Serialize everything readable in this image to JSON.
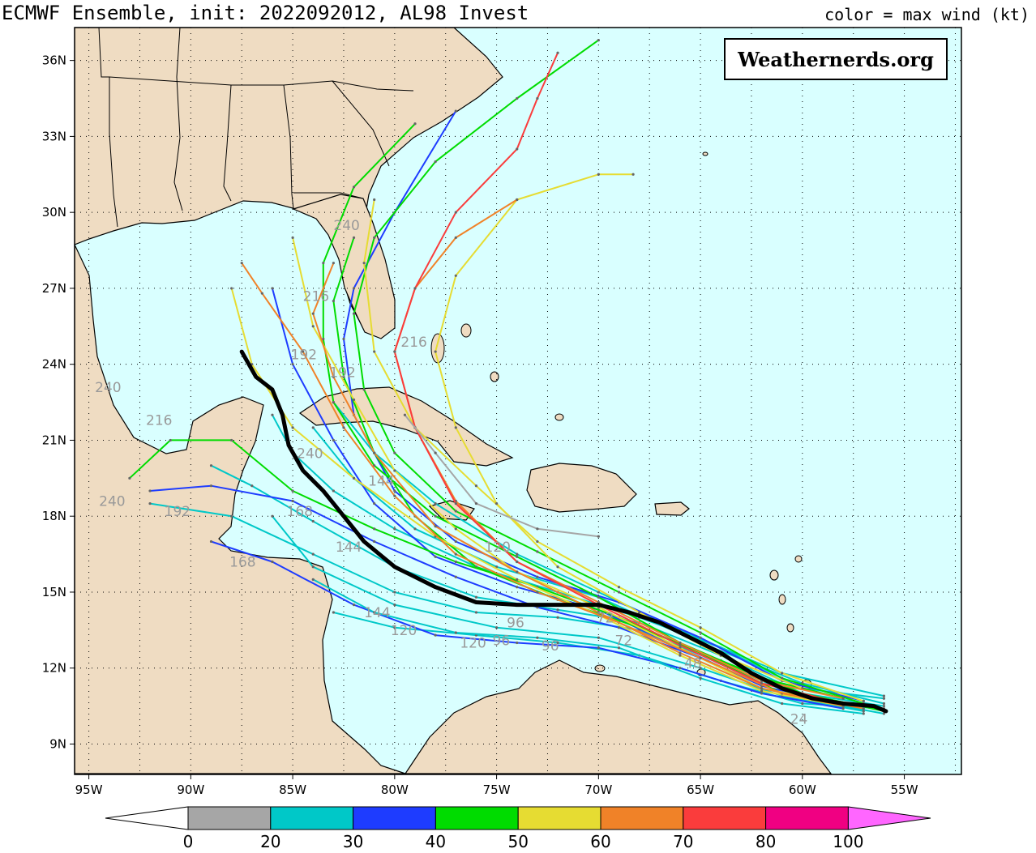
{
  "header": {
    "title": "ECMWF Ensemble, init: 2022092012, AL98 Invest",
    "legend_note": "color = max wind (kt)"
  },
  "badge": {
    "text": "Weathernerds.org"
  },
  "map": {
    "lon_range": [
      -95.7,
      -52.2
    ],
    "lat_range": [
      7.8,
      37.3
    ],
    "land_color": "#efdcc2",
    "ocean_color": "#d9ffff",
    "lon_ticks": [
      {
        "lon": -95,
        "label": "95W"
      },
      {
        "lon": -90,
        "label": "90W"
      },
      {
        "lon": -85,
        "label": "85W"
      },
      {
        "lon": -80,
        "label": "80W"
      },
      {
        "lon": -75,
        "label": "75W"
      },
      {
        "lon": -70,
        "label": "70W"
      },
      {
        "lon": -65,
        "label": "65W"
      },
      {
        "lon": -60,
        "label": "60W"
      },
      {
        "lon": -55,
        "label": "55W"
      }
    ],
    "lat_ticks": [
      {
        "lat": 36,
        "label": "36N"
      },
      {
        "lat": 33,
        "label": "33N"
      },
      {
        "lat": 30,
        "label": "30N"
      },
      {
        "lat": 27,
        "label": "27N"
      },
      {
        "lat": 24,
        "label": "24N"
      },
      {
        "lat": 21,
        "label": "21N"
      },
      {
        "lat": 18,
        "label": "18N"
      },
      {
        "lat": 15,
        "label": "15N"
      },
      {
        "lat": 12,
        "label": "12N"
      },
      {
        "lat": 9,
        "label": "9N"
      }
    ]
  },
  "colorbar": {
    "labels": [
      "0",
      "20",
      "30",
      "40",
      "50",
      "60",
      "70",
      "80",
      "100"
    ],
    "colors": [
      "#a6a6a6",
      "#00c8c8",
      "#1e3cff",
      "#00dc00",
      "#e6dc32",
      "#f08228",
      "#fa3c3c",
      "#f00082",
      "#ff66ff"
    ]
  },
  "mean_track": [
    [
      -55.9,
      10.3
    ],
    [
      -56.5,
      10.5
    ],
    [
      -58,
      10.6
    ],
    [
      -59.5,
      10.8
    ],
    [
      -61,
      11.2
    ],
    [
      -62.5,
      11.8
    ],
    [
      -64,
      12.6
    ],
    [
      -65.5,
      13.2
    ],
    [
      -67,
      13.8
    ],
    [
      -68.5,
      14.2
    ],
    [
      -70,
      14.5
    ],
    [
      -72,
      14.5
    ],
    [
      -74,
      14.5
    ],
    [
      -76,
      14.6
    ],
    [
      -78,
      15.2
    ],
    [
      -80,
      16.0
    ],
    [
      -81.5,
      17.0
    ],
    [
      -82.5,
      18.0
    ],
    [
      -83.5,
      19.0
    ],
    [
      -84.5,
      19.8
    ],
    [
      -85.2,
      20.8
    ],
    [
      -85.5,
      22.0
    ],
    [
      -86,
      23.0
    ],
    [
      -86.8,
      23.5
    ],
    [
      -87.5,
      24.5
    ]
  ],
  "member_tracks": [
    {
      "max_wind_kt": 25,
      "points": [
        [
          -56,
          10.5
        ],
        [
          -60,
          11
        ],
        [
          -64,
          12.5
        ],
        [
          -68,
          13.8
        ],
        [
          -72,
          14.3
        ],
        [
          -76,
          14.8
        ],
        [
          -80,
          16
        ],
        [
          -84,
          17.8
        ],
        [
          -87,
          19.2
        ],
        [
          -89,
          20
        ]
      ]
    },
    {
      "max_wind_kt": 25,
      "points": [
        [
          -56,
          10.8
        ],
        [
          -60,
          11.2
        ],
        [
          -64,
          12.8
        ],
        [
          -68,
          14
        ],
        [
          -72,
          15
        ],
        [
          -76,
          16
        ],
        [
          -80,
          17.5
        ],
        [
          -83,
          19
        ],
        [
          -85,
          20.5
        ],
        [
          -86,
          22
        ]
      ]
    },
    {
      "max_wind_kt": 25,
      "points": [
        [
          -56,
          10.2
        ],
        [
          -60,
          10.8
        ],
        [
          -64,
          12.2
        ],
        [
          -68,
          13.5
        ],
        [
          -72,
          14
        ],
        [
          -76,
          14.2
        ],
        [
          -80,
          15
        ],
        [
          -84,
          16.5
        ],
        [
          -88,
          18
        ],
        [
          -92,
          18.5
        ]
      ]
    },
    {
      "max_wind_kt": 25,
      "points": [
        [
          -56,
          10.6
        ],
        [
          -60,
          11.4
        ],
        [
          -65,
          13
        ],
        [
          -70,
          14.8
        ],
        [
          -75,
          16
        ],
        [
          -79,
          17.5
        ],
        [
          -82,
          19.5
        ],
        [
          -84,
          21.5
        ]
      ]
    },
    {
      "max_wind_kt": 25,
      "points": [
        [
          -56,
          10.4
        ],
        [
          -60,
          10.6
        ],
        [
          -64,
          11.5
        ],
        [
          -68,
          12.5
        ],
        [
          -72,
          13
        ],
        [
          -76,
          13.3
        ],
        [
          -80,
          13.6
        ],
        [
          -83,
          14.2
        ]
      ]
    },
    {
      "max_wind_kt": 25,
      "points": [
        [
          -56,
          10.9
        ],
        [
          -61,
          11.8
        ],
        [
          -66,
          13.5
        ],
        [
          -70,
          15
        ],
        [
          -74,
          16.5
        ],
        [
          -78,
          18.5
        ],
        [
          -81,
          20.5
        ],
        [
          -83,
          22.5
        ]
      ]
    },
    {
      "max_wind_kt": 25,
      "points": [
        [
          -57,
          10.3
        ],
        [
          -61,
          10.9
        ],
        [
          -65,
          12
        ],
        [
          -70,
          13.2
        ],
        [
          -75,
          13.6
        ],
        [
          -80,
          14.5
        ],
        [
          -84,
          16
        ],
        [
          -86,
          18
        ]
      ]
    },
    {
      "max_wind_kt": 35,
      "points": [
        [
          -57,
          10.5
        ],
        [
          -61,
          11
        ],
        [
          -65,
          12.4
        ],
        [
          -69,
          13.6
        ],
        [
          -73,
          14.4
        ],
        [
          -77,
          15.6
        ],
        [
          -81,
          17
        ],
        [
          -85,
          18.6
        ],
        [
          -89,
          19.2
        ],
        [
          -92,
          19
        ]
      ]
    },
    {
      "max_wind_kt": 35,
      "points": [
        [
          -58,
          10.5
        ],
        [
          -62,
          11.3
        ],
        [
          -66,
          12.8
        ],
        [
          -70,
          14.3
        ],
        [
          -74,
          15.2
        ],
        [
          -78,
          16.4
        ],
        [
          -81,
          18.5
        ],
        [
          -83,
          21
        ],
        [
          -85,
          24
        ],
        [
          -86,
          27
        ]
      ]
    },
    {
      "max_wind_kt": 35,
      "points": [
        [
          -58,
          10.4
        ],
        [
          -62,
          11
        ],
        [
          -66,
          12
        ],
        [
          -70,
          12.8
        ],
        [
          -74,
          13
        ],
        [
          -78,
          13.3
        ],
        [
          -82,
          14.5
        ],
        [
          -86,
          16.2
        ],
        [
          -89,
          17
        ]
      ]
    },
    {
      "max_wind_kt": 35,
      "points": [
        [
          -57,
          10.7
        ],
        [
          -61,
          11.5
        ],
        [
          -65,
          13.2
        ],
        [
          -69,
          14.6
        ],
        [
          -73,
          15.6
        ],
        [
          -77,
          17
        ],
        [
          -80,
          19
        ],
        [
          -82,
          22
        ],
        [
          -82.5,
          25
        ],
        [
          -82,
          27
        ],
        [
          -80,
          30
        ],
        [
          -77,
          34
        ]
      ]
    },
    {
      "max_wind_kt": 45,
      "points": [
        [
          -57,
          10.6
        ],
        [
          -61,
          11.6
        ],
        [
          -65,
          13.4
        ],
        [
          -69,
          15
        ],
        [
          -73,
          16.6
        ],
        [
          -77,
          18.2
        ],
        [
          -80,
          20.5
        ],
        [
          -81.5,
          23
        ],
        [
          -82,
          26
        ],
        [
          -81,
          29
        ],
        [
          -78,
          32
        ],
        [
          -74,
          34.5
        ],
        [
          -70,
          36.8
        ]
      ]
    },
    {
      "max_wind_kt": 45,
      "points": [
        [
          -56,
          10.3
        ],
        [
          -60,
          11
        ],
        [
          -64,
          12.3
        ],
        [
          -68,
          13.6
        ],
        [
          -72,
          14.7
        ],
        [
          -76,
          16
        ],
        [
          -79,
          18
        ],
        [
          -81,
          20.5
        ],
        [
          -82.5,
          23.5
        ],
        [
          -83,
          26.5
        ],
        [
          -82,
          29
        ]
      ]
    },
    {
      "max_wind_kt": 45,
      "points": [
        [
          -57,
          10.5
        ],
        [
          -61,
          11
        ],
        [
          -65,
          12.6
        ],
        [
          -69,
          14
        ],
        [
          -73,
          15.2
        ],
        [
          -77,
          16.2
        ],
        [
          -81,
          17.5
        ],
        [
          -85,
          19
        ],
        [
          -88,
          21
        ],
        [
          -91,
          21
        ],
        [
          -93,
          19.5
        ]
      ]
    },
    {
      "max_wind_kt": 45,
      "points": [
        [
          -58,
          10.8
        ],
        [
          -62,
          11.6
        ],
        [
          -66,
          13
        ],
        [
          -70,
          14.8
        ],
        [
          -74,
          16.4
        ],
        [
          -78,
          18
        ],
        [
          -81,
          20
        ],
        [
          -83,
          22.5
        ],
        [
          -83.5,
          25
        ],
        [
          -83.5,
          28
        ],
        [
          -82,
          31
        ],
        [
          -79,
          33.5
        ]
      ]
    },
    {
      "max_wind_kt": 55,
      "points": [
        [
          -58,
          10.6
        ],
        [
          -62,
          11.2
        ],
        [
          -66,
          12.8
        ],
        [
          -70,
          14.4
        ],
        [
          -74,
          15.8
        ],
        [
          -77,
          17.5
        ],
        [
          -80,
          19.8
        ],
        [
          -82,
          22.6
        ],
        [
          -84,
          25.5
        ],
        [
          -85,
          29
        ]
      ]
    },
    {
      "max_wind_kt": 55,
      "points": [
        [
          -57,
          10.7
        ],
        [
          -61,
          11.8
        ],
        [
          -65,
          13.6
        ],
        [
          -69,
          15.2
        ],
        [
          -73,
          17
        ],
        [
          -76,
          19.2
        ],
        [
          -79,
          21.5
        ],
        [
          -81,
          24.5
        ],
        [
          -81.5,
          28
        ],
        [
          -81,
          30.5
        ]
      ]
    },
    {
      "max_wind_kt": 55,
      "points": [
        [
          -58,
          10.5
        ],
        [
          -62,
          11.1
        ],
        [
          -66,
          12.5
        ],
        [
          -70,
          14.1
        ],
        [
          -74,
          15.5
        ],
        [
          -78,
          17.2
        ],
        [
          -82,
          19.5
        ],
        [
          -85,
          21.5
        ],
        [
          -87,
          24
        ],
        [
          -88,
          27
        ]
      ]
    },
    {
      "max_wind_kt": 55,
      "points": [
        [
          -60,
          11.2
        ],
        [
          -64,
          12.5
        ],
        [
          -68,
          14.2
        ],
        [
          -72,
          16
        ],
        [
          -75,
          18.5
        ],
        [
          -77,
          21.5
        ],
        [
          -78,
          24.5
        ],
        [
          -77,
          27.5
        ],
        [
          -74,
          30.5
        ],
        [
          -70,
          31.5
        ],
        [
          -68.3,
          31.5
        ]
      ]
    },
    {
      "max_wind_kt": 65,
      "points": [
        [
          -57,
          10.4
        ],
        [
          -61,
          11
        ],
        [
          -65,
          12.4
        ],
        [
          -69,
          13.8
        ],
        [
          -73,
          15
        ],
        [
          -77,
          16.5
        ],
        [
          -80,
          18.8
        ],
        [
          -82.5,
          21.5
        ],
        [
          -84.5,
          24.5
        ],
        [
          -86.5,
          26.8
        ],
        [
          -87.5,
          28
        ]
      ]
    },
    {
      "max_wind_kt": 65,
      "points": [
        [
          -58,
          10.8
        ],
        [
          -62,
          11.5
        ],
        [
          -66,
          13
        ],
        [
          -70,
          14.6
        ],
        [
          -74,
          16.2
        ],
        [
          -77,
          18.6
        ],
        [
          -79,
          21.5
        ],
        [
          -80,
          24.5
        ],
        [
          -79,
          27
        ],
        [
          -77,
          29
        ],
        [
          -74,
          30.5
        ]
      ]
    },
    {
      "max_wind_kt": 75,
      "points": [
        [
          -58,
          10.6
        ],
        [
          -62,
          11.4
        ],
        [
          -66,
          12.9
        ],
        [
          -70,
          14.5
        ],
        [
          -74,
          16.2
        ],
        [
          -77,
          18.5
        ],
        [
          -79,
          21.5
        ],
        [
          -80,
          24.5
        ],
        [
          -79,
          27
        ],
        [
          -77,
          30
        ],
        [
          -74,
          32.5
        ],
        [
          -73,
          34.5
        ],
        [
          -72,
          36.3
        ]
      ]
    },
    {
      "max_wind_kt": 65,
      "points": [
        [
          -58,
          10.5
        ],
        [
          -62,
          11.2
        ],
        [
          -66,
          12.6
        ],
        [
          -70,
          14.2
        ],
        [
          -74,
          15.8
        ],
        [
          -78,
          17.6
        ],
        [
          -81,
          20.5
        ],
        [
          -83,
          23.5
        ],
        [
          -84,
          26
        ],
        [
          -83,
          28
        ]
      ]
    },
    {
      "max_wind_kt": 25,
      "points": [
        [
          -57,
          10.2
        ],
        [
          -61,
          10.6
        ],
        [
          -65,
          11.6
        ],
        [
          -69,
          12.8
        ],
        [
          -73,
          13.2
        ],
        [
          -77,
          13.4
        ],
        [
          -81,
          14.2
        ],
        [
          -84,
          15.5
        ]
      ]
    },
    {
      "max_wind_kt": 15,
      "points": [
        [
          -70,
          17.2
        ],
        [
          -73,
          17.5
        ],
        [
          -76,
          18.5
        ],
        [
          -78,
          20.5
        ],
        [
          -79.5,
          22
        ]
      ]
    }
  ],
  "hour_labels": [
    {
      "text": "24",
      "lon": -60.6,
      "lat": 9.8
    },
    {
      "text": "48",
      "lon": -65.8,
      "lat": 12.0
    },
    {
      "text": "72",
      "lon": -70.1,
      "lat": 13.8
    },
    {
      "text": "72",
      "lon": -69.2,
      "lat": 12.9
    },
    {
      "text": "96",
      "lon": -74.5,
      "lat": 13.6
    },
    {
      "text": "96",
      "lon": -75.2,
      "lat": 12.9
    },
    {
      "text": "96",
      "lon": -72.8,
      "lat": 12.7
    },
    {
      "text": "120",
      "lon": -76.8,
      "lat": 12.8
    },
    {
      "text": "120",
      "lon": -80.2,
      "lat": 13.3
    },
    {
      "text": "120",
      "lon": -75.6,
      "lat": 16.6
    },
    {
      "text": "144",
      "lon": -81.5,
      "lat": 14.0
    },
    {
      "text": "144",
      "lon": -82.9,
      "lat": 16.6
    },
    {
      "text": "144",
      "lon": -81.3,
      "lat": 19.2
    },
    {
      "text": "168",
      "lon": -85.3,
      "lat": 18.0
    },
    {
      "text": "168",
      "lon": -88.1,
      "lat": 16.0
    },
    {
      "text": "192",
      "lon": -91.3,
      "lat": 18.0
    },
    {
      "text": "192",
      "lon": -83.2,
      "lat": 23.5
    },
    {
      "text": "192",
      "lon": -85.1,
      "lat": 24.2
    },
    {
      "text": "216",
      "lon": -92.2,
      "lat": 21.6
    },
    {
      "text": "216",
      "lon": -84.5,
      "lat": 26.5
    },
    {
      "text": "240",
      "lon": -94.7,
      "lat": 22.9
    },
    {
      "text": "240",
      "lon": -83.0,
      "lat": 29.3
    },
    {
      "text": "240",
      "lon": -94.5,
      "lat": 18.4
    },
    {
      "text": "240",
      "lon": -84.8,
      "lat": 20.3
    },
    {
      "text": "216",
      "lon": -79.7,
      "lat": 24.7
    }
  ]
}
